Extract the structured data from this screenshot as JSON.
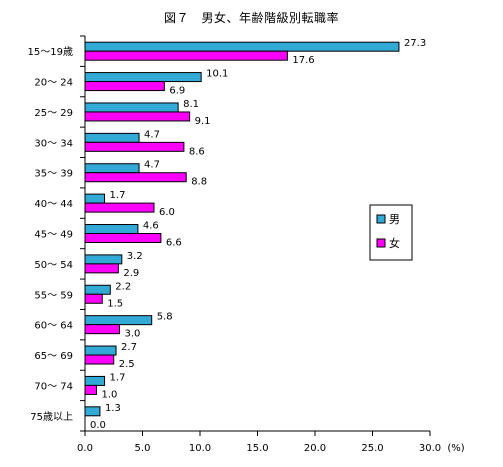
{
  "chart_data": {
    "type": "bar",
    "orientation": "horizontal",
    "title": "図７　男女、年齢階級別転職率",
    "categories": [
      "15～19歳",
      "20～ 24",
      "25～ 29",
      "30～ 34",
      "35～ 39",
      "40～ 44",
      "45～ 49",
      "50～ 54",
      "55～ 59",
      "60～ 64",
      "65～ 69",
      "70～ 74",
      "75歳以上"
    ],
    "series": [
      {
        "name": "男",
        "color": "#33a9d6",
        "values": [
          27.3,
          10.1,
          8.1,
          4.7,
          4.7,
          1.7,
          4.6,
          3.2,
          2.2,
          5.8,
          2.7,
          1.7,
          1.3
        ]
      },
      {
        "name": "女",
        "color": "#ff00ff",
        "values": [
          17.6,
          6.9,
          9.1,
          8.6,
          8.8,
          6.0,
          6.6,
          2.9,
          1.5,
          3.0,
          2.5,
          1.0,
          0.0
        ]
      }
    ],
    "value_labels": {
      "男": [
        "27.3",
        "10.1",
        "8.1",
        "4.7",
        "4.7",
        "1.7",
        "4.6",
        "3.2",
        "2.2",
        "5.8",
        "2.7",
        "1.7",
        "1.3"
      ],
      "女": [
        "17.6",
        "6.9",
        "9.1",
        "8.6",
        "8.8",
        "6.0",
        "6.6",
        "2.9",
        "1.5",
        "3.0",
        "2.5",
        "1.0",
        "0.0"
      ]
    },
    "xlim": [
      0,
      30
    ],
    "xticks": [
      "0.0",
      "5.0",
      "10.0",
      "15.0",
      "20.0",
      "25.0",
      "30.0"
    ],
    "xunit": "(%)",
    "grid": false,
    "legend_position": "right"
  }
}
